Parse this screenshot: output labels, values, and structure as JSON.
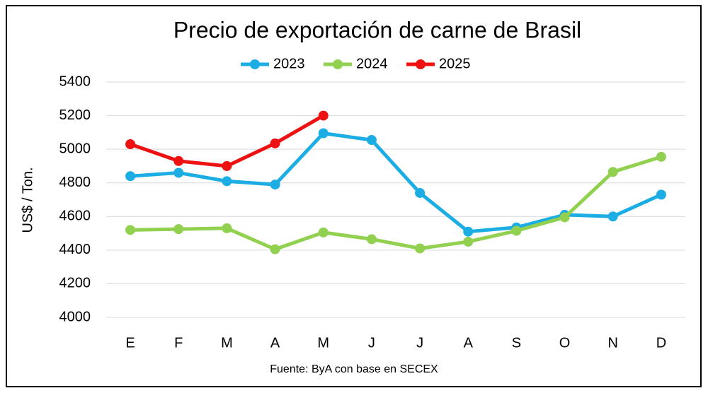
{
  "chart_data": {
    "type": "line",
    "title": "Precio de exportación de carne de Brasil",
    "ylabel": "US$ / Ton.",
    "source": "Fuente: ByA con base en SECEX",
    "categories": [
      "E",
      "F",
      "M",
      "A",
      "M",
      "J",
      "J",
      "A",
      "S",
      "O",
      "N",
      "D"
    ],
    "series": [
      {
        "name": "2023",
        "color": "#1cade4",
        "values": [
          4840,
          4860,
          4810,
          4790,
          5095,
          5055,
          4740,
          4510,
          4535,
          4610,
          4600,
          4730
        ]
      },
      {
        "name": "2024",
        "color": "#92d050",
        "values": [
          4520,
          4525,
          4530,
          4405,
          4505,
          4465,
          4410,
          4450,
          4515,
          4595,
          4865,
          4955
        ]
      },
      {
        "name": "2025",
        "color": "#ee1111",
        "values": [
          5030,
          4930,
          4900,
          5035,
          5200,
          null,
          null,
          null,
          null,
          null,
          null,
          null
        ]
      }
    ],
    "ylim": [
      4000,
      5400
    ],
    "yticks": [
      4000,
      4200,
      4400,
      4600,
      4800,
      5000,
      5200,
      5400
    ],
    "grid": true,
    "legend": "top"
  }
}
